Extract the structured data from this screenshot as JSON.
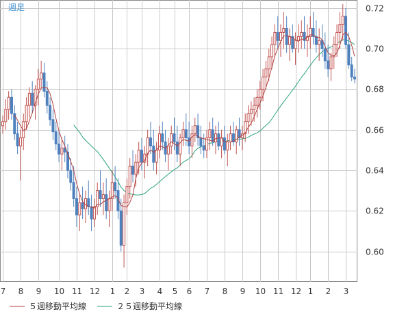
{
  "chart_data": {
    "type": "candlestick",
    "period_label": "週足",
    "x_tick_labels": [
      "7",
      "8",
      "9",
      "10",
      "11",
      "12",
      "1",
      "2",
      "3",
      "4",
      "5",
      "6",
      "7",
      "8",
      "9",
      "10",
      "11",
      "12",
      "1",
      "2",
      "3"
    ],
    "x_tick_weeks": [
      0,
      6,
      12,
      19,
      25,
      31,
      37,
      42,
      47,
      53,
      58,
      63,
      69,
      75,
      81,
      87,
      93,
      99,
      104,
      110,
      116
    ],
    "y_ticks": [
      0.6,
      0.62,
      0.64,
      0.66,
      0.68,
      0.7,
      0.72
    ],
    "ylim": [
      0.585,
      0.724
    ],
    "grid": true,
    "colors": {
      "up": "#c0504d",
      "down": "#4f81bd",
      "ma5": "#b0413e",
      "ma25": "#2aa37a",
      "grid": "#c8c8c8",
      "axis": "#888888",
      "period": "#3a8fd0"
    },
    "legend": [
      {
        "label": "５週移動平均線",
        "color": "#b0413e"
      },
      {
        "label": "２５週移動平均線",
        "color": "#2aa37a"
      }
    ],
    "candles": [
      [
        0.662,
        0.667,
        0.658,
        0.664
      ],
      [
        0.664,
        0.675,
        0.66,
        0.67
      ],
      [
        0.67,
        0.679,
        0.665,
        0.676
      ],
      [
        0.676,
        0.68,
        0.665,
        0.668
      ],
      [
        0.668,
        0.672,
        0.655,
        0.658
      ],
      [
        0.658,
        0.664,
        0.648,
        0.652
      ],
      [
        0.652,
        0.66,
        0.635,
        0.656
      ],
      [
        0.656,
        0.668,
        0.65,
        0.664
      ],
      [
        0.664,
        0.676,
        0.66,
        0.672
      ],
      [
        0.672,
        0.681,
        0.666,
        0.678
      ],
      [
        0.678,
        0.684,
        0.668,
        0.672
      ],
      [
        0.672,
        0.682,
        0.665,
        0.68
      ],
      [
        0.68,
        0.69,
        0.672,
        0.685
      ],
      [
        0.685,
        0.694,
        0.68,
        0.688
      ],
      [
        0.688,
        0.693,
        0.676,
        0.679
      ],
      [
        0.679,
        0.684,
        0.668,
        0.672
      ],
      [
        0.672,
        0.676,
        0.662,
        0.665
      ],
      [
        0.665,
        0.67,
        0.655,
        0.659
      ],
      [
        0.659,
        0.664,
        0.65,
        0.653
      ],
      [
        0.653,
        0.66,
        0.644,
        0.648
      ],
      [
        0.648,
        0.656,
        0.64,
        0.651
      ],
      [
        0.651,
        0.657,
        0.644,
        0.649
      ],
      [
        0.649,
        0.653,
        0.636,
        0.64
      ],
      [
        0.64,
        0.646,
        0.63,
        0.634
      ],
      [
        0.634,
        0.642,
        0.622,
        0.626
      ],
      [
        0.626,
        0.632,
        0.612,
        0.618
      ],
      [
        0.618,
        0.628,
        0.61,
        0.624
      ],
      [
        0.624,
        0.632,
        0.616,
        0.621
      ],
      [
        0.621,
        0.63,
        0.614,
        0.626
      ],
      [
        0.626,
        0.635,
        0.618,
        0.622
      ],
      [
        0.622,
        0.628,
        0.61,
        0.616
      ],
      [
        0.616,
        0.626,
        0.612,
        0.622
      ],
      [
        0.622,
        0.634,
        0.618,
        0.63
      ],
      [
        0.63,
        0.64,
        0.622,
        0.626
      ],
      [
        0.626,
        0.634,
        0.618,
        0.628
      ],
      [
        0.628,
        0.636,
        0.616,
        0.62
      ],
      [
        0.62,
        0.63,
        0.612,
        0.626
      ],
      [
        0.626,
        0.64,
        0.62,
        0.634
      ],
      [
        0.634,
        0.642,
        0.626,
        0.63
      ],
      [
        0.63,
        0.636,
        0.616,
        0.62
      ],
      [
        0.62,
        0.626,
        0.6,
        0.603
      ],
      [
        0.603,
        0.628,
        0.592,
        0.624
      ],
      [
        0.624,
        0.636,
        0.618,
        0.632
      ],
      [
        0.632,
        0.646,
        0.626,
        0.642
      ],
      [
        0.642,
        0.65,
        0.634,
        0.638
      ],
      [
        0.638,
        0.648,
        0.632,
        0.644
      ],
      [
        0.644,
        0.654,
        0.638,
        0.65
      ],
      [
        0.65,
        0.656,
        0.64,
        0.644
      ],
      [
        0.644,
        0.652,
        0.636,
        0.648
      ],
      [
        0.648,
        0.66,
        0.642,
        0.656
      ],
      [
        0.656,
        0.664,
        0.648,
        0.652
      ],
      [
        0.652,
        0.66,
        0.64,
        0.644
      ],
      [
        0.644,
        0.654,
        0.638,
        0.65
      ],
      [
        0.65,
        0.662,
        0.646,
        0.658
      ],
      [
        0.658,
        0.664,
        0.65,
        0.654
      ],
      [
        0.654,
        0.66,
        0.644,
        0.648
      ],
      [
        0.648,
        0.656,
        0.64,
        0.652
      ],
      [
        0.652,
        0.662,
        0.648,
        0.658
      ],
      [
        0.658,
        0.666,
        0.65,
        0.654
      ],
      [
        0.654,
        0.662,
        0.644,
        0.648
      ],
      [
        0.648,
        0.658,
        0.642,
        0.656
      ],
      [
        0.656,
        0.664,
        0.652,
        0.66
      ],
      [
        0.66,
        0.668,
        0.652,
        0.656
      ],
      [
        0.656,
        0.664,
        0.648,
        0.652
      ],
      [
        0.652,
        0.662,
        0.646,
        0.658
      ],
      [
        0.658,
        0.666,
        0.654,
        0.662
      ],
      [
        0.662,
        0.668,
        0.652,
        0.656
      ],
      [
        0.656,
        0.662,
        0.648,
        0.652
      ],
      [
        0.652,
        0.658,
        0.646,
        0.65
      ],
      [
        0.65,
        0.66,
        0.646,
        0.656
      ],
      [
        0.656,
        0.664,
        0.65,
        0.66
      ],
      [
        0.66,
        0.666,
        0.652,
        0.654
      ],
      [
        0.654,
        0.662,
        0.648,
        0.658
      ],
      [
        0.658,
        0.664,
        0.65,
        0.652
      ],
      [
        0.652,
        0.66,
        0.646,
        0.656
      ],
      [
        0.656,
        0.662,
        0.648,
        0.65
      ],
      [
        0.65,
        0.658,
        0.642,
        0.654
      ],
      [
        0.654,
        0.662,
        0.65,
        0.658
      ],
      [
        0.658,
        0.664,
        0.652,
        0.654
      ],
      [
        0.654,
        0.662,
        0.648,
        0.66
      ],
      [
        0.66,
        0.666,
        0.652,
        0.656
      ],
      [
        0.656,
        0.662,
        0.65,
        0.658
      ],
      [
        0.658,
        0.668,
        0.654,
        0.664
      ],
      [
        0.664,
        0.672,
        0.658,
        0.668
      ],
      [
        0.668,
        0.674,
        0.662,
        0.67
      ],
      [
        0.67,
        0.676,
        0.664,
        0.672
      ],
      [
        0.672,
        0.68,
        0.666,
        0.676
      ],
      [
        0.676,
        0.684,
        0.67,
        0.68
      ],
      [
        0.68,
        0.69,
        0.674,
        0.686
      ],
      [
        0.686,
        0.694,
        0.68,
        0.69
      ],
      [
        0.69,
        0.7,
        0.684,
        0.696
      ],
      [
        0.696,
        0.706,
        0.69,
        0.702
      ],
      [
        0.702,
        0.712,
        0.696,
        0.708
      ],
      [
        0.708,
        0.716,
        0.7,
        0.704
      ],
      [
        0.704,
        0.712,
        0.696,
        0.708
      ],
      [
        0.708,
        0.718,
        0.7,
        0.71
      ],
      [
        0.71,
        0.716,
        0.698,
        0.702
      ],
      [
        0.702,
        0.71,
        0.694,
        0.706
      ],
      [
        0.706,
        0.712,
        0.698,
        0.7
      ],
      [
        0.7,
        0.708,
        0.692,
        0.704
      ],
      [
        0.704,
        0.712,
        0.698,
        0.706
      ],
      [
        0.706,
        0.714,
        0.7,
        0.708
      ],
      [
        0.708,
        0.716,
        0.7,
        0.704
      ],
      [
        0.704,
        0.712,
        0.696,
        0.706
      ],
      [
        0.706,
        0.716,
        0.7,
        0.71
      ],
      [
        0.71,
        0.718,
        0.702,
        0.706
      ],
      [
        0.706,
        0.714,
        0.698,
        0.702
      ],
      [
        0.702,
        0.71,
        0.694,
        0.704
      ],
      [
        0.704,
        0.712,
        0.696,
        0.7
      ],
      [
        0.7,
        0.708,
        0.69,
        0.694
      ],
      [
        0.694,
        0.702,
        0.686,
        0.69
      ],
      [
        0.69,
        0.698,
        0.684,
        0.696
      ],
      [
        0.696,
        0.706,
        0.69,
        0.702
      ],
      [
        0.702,
        0.712,
        0.696,
        0.708
      ],
      [
        0.708,
        0.718,
        0.7,
        0.712
      ],
      [
        0.712,
        0.722,
        0.704,
        0.716
      ],
      [
        0.716,
        0.72,
        0.7,
        0.702
      ],
      [
        0.702,
        0.708,
        0.69,
        0.692
      ],
      [
        0.692,
        0.696,
        0.684,
        0.686
      ],
      [
        0.686,
        0.69,
        0.683,
        0.685
      ]
    ]
  }
}
